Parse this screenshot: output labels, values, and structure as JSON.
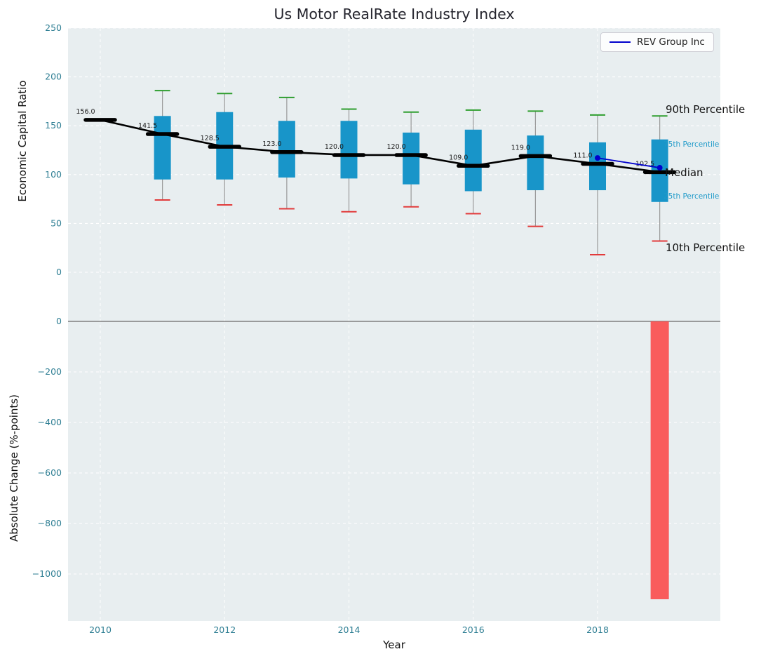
{
  "figure": {
    "title": "Us Motor RealRate Industry Index",
    "xlabel": "Year",
    "legend_label": "REV Group Inc"
  },
  "annotations": {
    "p90": "90th Percentile",
    "p75": "75th Percentile",
    "median": "Median",
    "p25": "25th Percentile",
    "p10": "10th Percentile"
  },
  "colors": {
    "box": "#1895c9",
    "median_line": "#000000",
    "whisker": "#9a9a9a",
    "cap_top": "#2e9e2e",
    "cap_bottom": "#e23b3b",
    "overlay_line": "#0000cc",
    "bar": "#fb4b4b",
    "axes_bg": "#e8eef0",
    "grid": "#ffffff",
    "tick_label": "#2e7e93",
    "zero_line": "#7f7f7f"
  },
  "chart_data": [
    {
      "type": "boxplot",
      "title": "Us Motor RealRate Industry Index",
      "xlabel": "Year",
      "ylabel": "Economic Capital Ratio",
      "ylim": [
        -48,
        250
      ],
      "yticks": [
        0,
        50,
        100,
        150,
        200,
        250
      ],
      "xticks": [
        2010,
        2012,
        2014,
        2016,
        2018
      ],
      "grid": true,
      "legend_position": "upper right",
      "years": [
        2010,
        2011,
        2012,
        2013,
        2014,
        2015,
        2016,
        2017,
        2018,
        2019
      ],
      "series": {
        "median": [
          156.0,
          141.5,
          128.5,
          123.0,
          120.0,
          120.0,
          109.0,
          119.0,
          111.0,
          102.5
        ],
        "p75": [
          null,
          160,
          164,
          155,
          155,
          143,
          146,
          140,
          133,
          136
        ],
        "p25": [
          null,
          95,
          95,
          97,
          96,
          90,
          83,
          84,
          84,
          72
        ],
        "p90": [
          null,
          186,
          183,
          179,
          167,
          164,
          166,
          165,
          161,
          160
        ],
        "p10": [
          null,
          74,
          69,
          65,
          62,
          67,
          60,
          47,
          18,
          32
        ]
      },
      "median_labels": [
        "156.0",
        "141.5",
        "128.5",
        "123.0",
        "120.0",
        "120.0",
        "109.0",
        "119.0",
        "111.0",
        "102.5"
      ],
      "overlay_line": {
        "name": "REV Group Inc",
        "x": [
          2018,
          2019
        ],
        "y": [
          117,
          107
        ]
      }
    },
    {
      "type": "bar",
      "ylabel": "Absolute Change (%-points)",
      "xlabel": "Year",
      "ylim": [
        -1190,
        0
      ],
      "yticks": [
        0,
        -200,
        -400,
        -600,
        -800,
        -1000
      ],
      "grid": true,
      "categories": [
        2019
      ],
      "values": [
        -1100
      ]
    }
  ]
}
